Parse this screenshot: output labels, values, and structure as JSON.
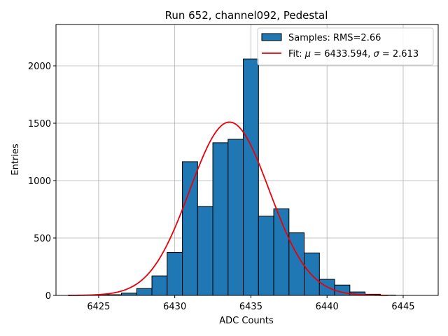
{
  "chart_data": {
    "type": "bar",
    "title": "Run 652, channel092, Pedestal",
    "xlabel": "ADC Counts",
    "ylabel": "Entries",
    "xlim": [
      6422.2,
      6447.3
    ],
    "ylim": [
      0,
      2360
    ],
    "xticks": [
      6425,
      6430,
      6435,
      6440,
      6445
    ],
    "yticks": [
      0,
      500,
      1000,
      1500,
      2000
    ],
    "grid": true,
    "legend_position": "top-right",
    "histogram": {
      "name": "Samples: RMS=2.66",
      "color": "#1f77b4",
      "bin_width": 1,
      "bins": [
        {
          "x": 6425,
          "value": 3
        },
        {
          "x": 6426,
          "value": 6
        },
        {
          "x": 6427,
          "value": 20
        },
        {
          "x": 6428,
          "value": 60
        },
        {
          "x": 6429,
          "value": 170
        },
        {
          "x": 6430,
          "value": 375
        },
        {
          "x": 6431,
          "value": 1165
        },
        {
          "x": 6432,
          "value": 775
        },
        {
          "x": 6433,
          "value": 1330
        },
        {
          "x": 6434,
          "value": 1360
        },
        {
          "x": 6435,
          "value": 2060
        },
        {
          "x": 6436,
          "value": 690
        },
        {
          "x": 6437,
          "value": 755
        },
        {
          "x": 6438,
          "value": 545
        },
        {
          "x": 6439,
          "value": 370
        },
        {
          "x": 6440,
          "value": 140
        },
        {
          "x": 6441,
          "value": 90
        },
        {
          "x": 6442,
          "value": 30
        },
        {
          "x": 6443,
          "value": 10
        },
        {
          "x": 6444,
          "value": 3
        }
      ]
    },
    "fit": {
      "name": "Fit: μ = 6433.594, σ = 2.613",
      "name_parts": {
        "prefix": "Fit: ",
        "mu_symbol": "μ",
        "mu_text": " = 6433.594, ",
        "sigma_symbol": "σ",
        "sigma_text": " = 2.613"
      },
      "color": "#e8000b",
      "mu": 6433.594,
      "sigma": 2.613,
      "peak": 1510,
      "x_range": [
        6423,
        6444
      ]
    }
  }
}
